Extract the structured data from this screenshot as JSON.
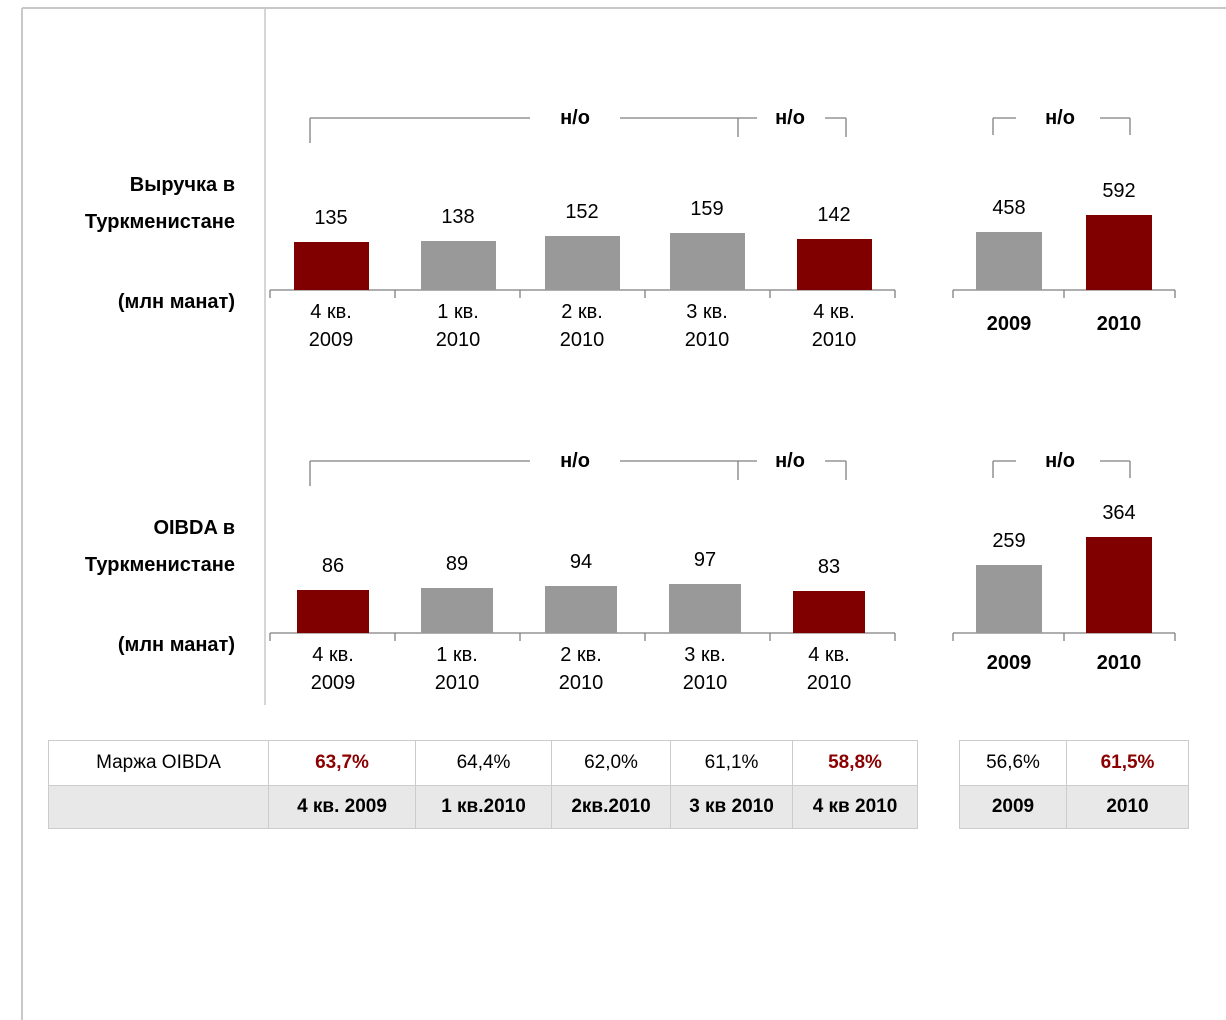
{
  "chart_data": [
    {
      "type": "bar",
      "title": "Выручка в\nТуркменистане",
      "subtitle": "(млн манат)",
      "categories": [
        "4 кв.\n2009",
        "1 кв.\n2010",
        "2 кв.\n2010",
        "3 кв.\n2010",
        "4 кв.\n2010"
      ],
      "values": [
        135,
        138,
        152,
        159,
        142
      ],
      "colors": [
        "#800000",
        "#999999",
        "#999999",
        "#999999",
        "#800000"
      ],
      "annotations": [
        "н/о",
        "н/о"
      ]
    },
    {
      "type": "bar",
      "categories": [
        "2009",
        "2010"
      ],
      "values": [
        458,
        592
      ],
      "colors": [
        "#999999",
        "#800000"
      ],
      "annotations": [
        "н/о"
      ]
    },
    {
      "type": "bar",
      "title": "OIBDA в\nТуркменистане",
      "subtitle": "(млн манат)",
      "categories": [
        "4 кв.\n2009",
        "1 кв.\n2010",
        "2 кв.\n2010",
        "3 кв.\n2010",
        "4 кв.\n2010"
      ],
      "values": [
        86,
        89,
        94,
        97,
        83
      ],
      "colors": [
        "#800000",
        "#999999",
        "#999999",
        "#999999",
        "#800000"
      ],
      "annotations": [
        "н/о",
        "н/о"
      ]
    },
    {
      "type": "bar",
      "categories": [
        "2009",
        "2010"
      ],
      "values": [
        259,
        364
      ],
      "colors": [
        "#999999",
        "#800000"
      ],
      "annotations": [
        "н/о"
      ]
    }
  ],
  "tables": [
    {
      "row_label": "Маржа OIBDA",
      "values": [
        "63,7%",
        "64,4%",
        "62,0%",
        "61,1%",
        "58,8%"
      ],
      "emphasis": [
        true,
        false,
        false,
        false,
        true
      ],
      "columns": [
        "4 кв. 2009",
        "1 кв.2010",
        "2кв.2010",
        "3 кв 2010",
        "4 кв 2010"
      ]
    },
    {
      "values": [
        "56,6%",
        "61,5%"
      ],
      "emphasis": [
        false,
        true
      ],
      "columns": [
        "2009",
        "2010"
      ]
    }
  ]
}
